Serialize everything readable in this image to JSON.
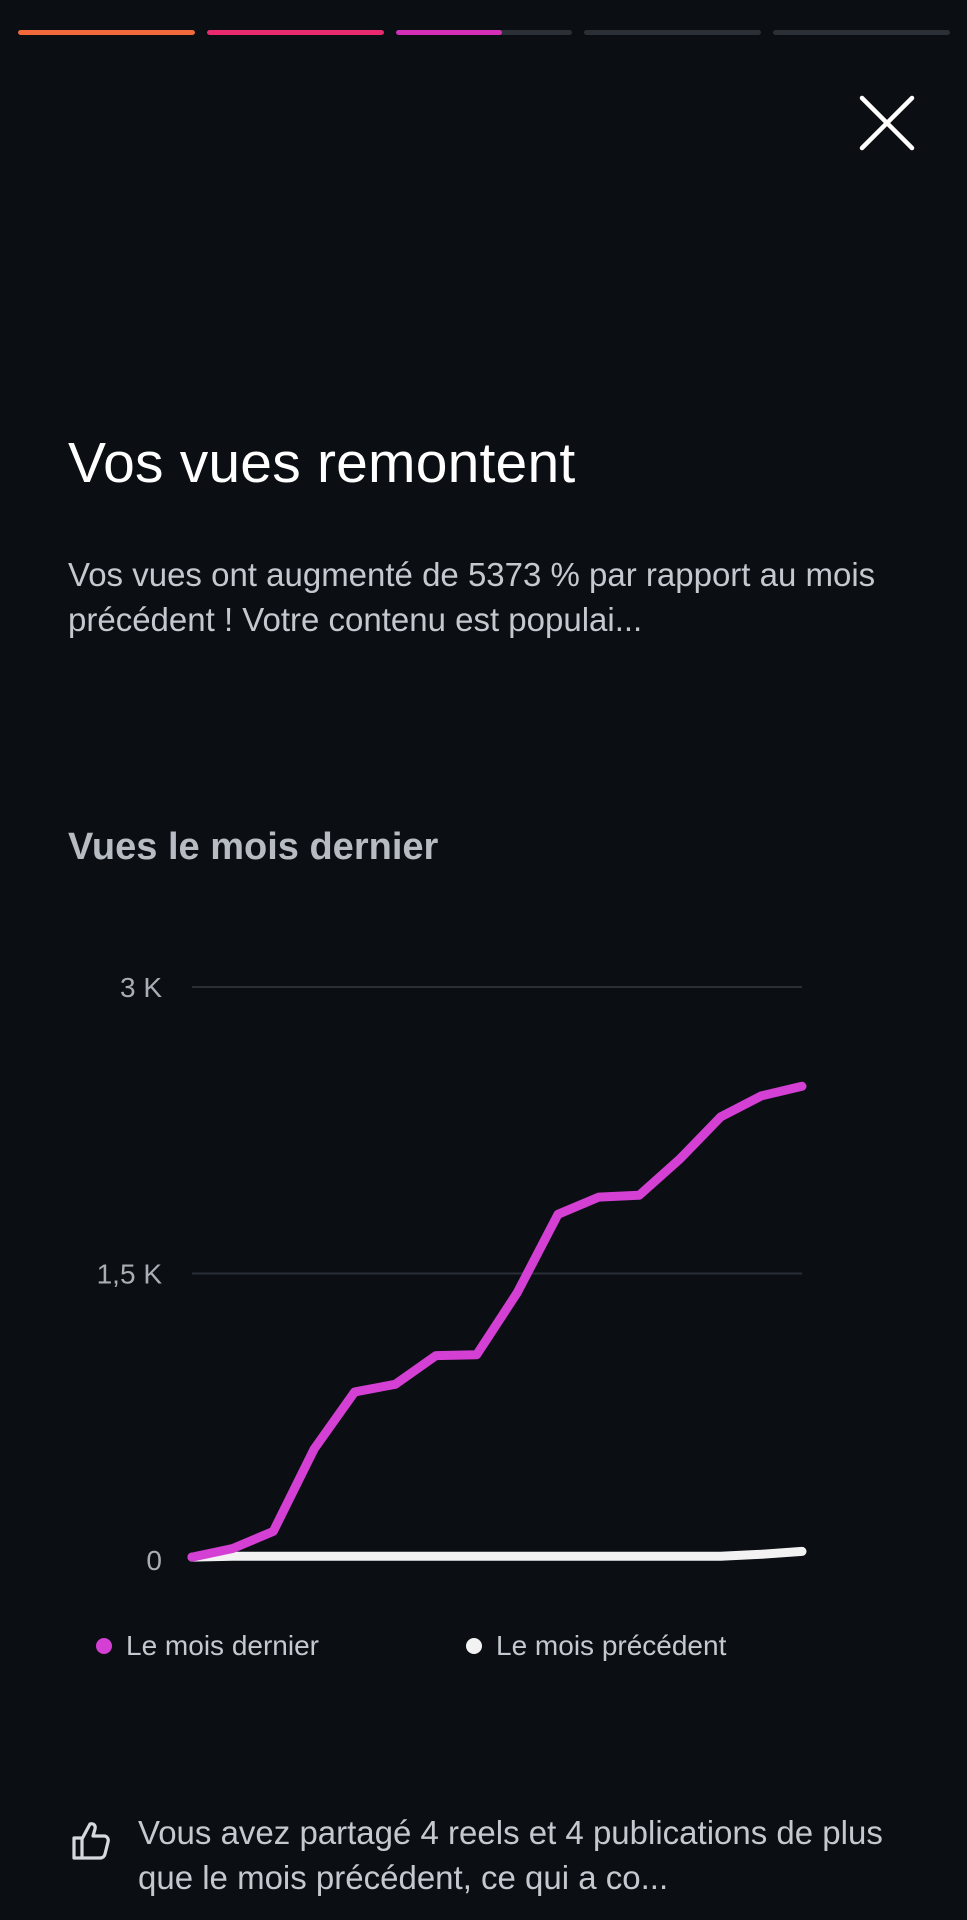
{
  "story_progress": {
    "segments": [
      {
        "state": "complete",
        "color": "#f0693a",
        "fill": 1.0
      },
      {
        "state": "complete",
        "color": "#ea2a6e",
        "fill": 1.0
      },
      {
        "state": "active",
        "color": "#d42fb6",
        "fill": 0.6
      },
      {
        "state": "upcoming",
        "color": "#2b2f36",
        "fill": 0
      },
      {
        "state": "upcoming",
        "color": "#2b2f36",
        "fill": 0
      }
    ]
  },
  "close": {
    "icon": "close-icon"
  },
  "header": {
    "title": "Vos vues remontent",
    "description": "Vos vues ont augmenté de 5373 % par rapport au mois précédent ! Votre contenu est populai..."
  },
  "chart": {
    "title": "Vues le mois dernier"
  },
  "chart_data": {
    "type": "line",
    "title": "Vues le mois dernier",
    "yticks": [
      "3 K",
      "1,5 K",
      "0"
    ],
    "ytick_values": [
      3000,
      1500,
      0
    ],
    "ylim": [
      0,
      3000
    ],
    "x": [
      1,
      2,
      3,
      4,
      5,
      6,
      7,
      8,
      9,
      10,
      11,
      12,
      13,
      14,
      15,
      16
    ],
    "grid": true,
    "legend_position": "bottom",
    "series": [
      {
        "name": "Le mois dernier",
        "color": "#d43fd4",
        "values": [
          15,
          60,
          150,
          580,
          880,
          920,
          1070,
          1075,
          1400,
          1810,
          1900,
          1910,
          2100,
          2320,
          2430,
          2480
        ]
      },
      {
        "name": "Le mois précédent",
        "color": "#f2f2f2",
        "values": [
          15,
          20,
          20,
          20,
          20,
          20,
          20,
          20,
          20,
          20,
          20,
          20,
          20,
          20,
          30,
          45
        ]
      }
    ]
  },
  "legend": {
    "items": [
      {
        "label": "Le mois dernier",
        "color": "#d43fd4"
      },
      {
        "label": "Le mois précédent",
        "color": "#f2f2f2"
      }
    ]
  },
  "footer": {
    "icon": "thumbs-up-icon",
    "text": "Vous avez partagé 4 reels et 4 publications de plus que le mois précédent, ce qui a co..."
  }
}
